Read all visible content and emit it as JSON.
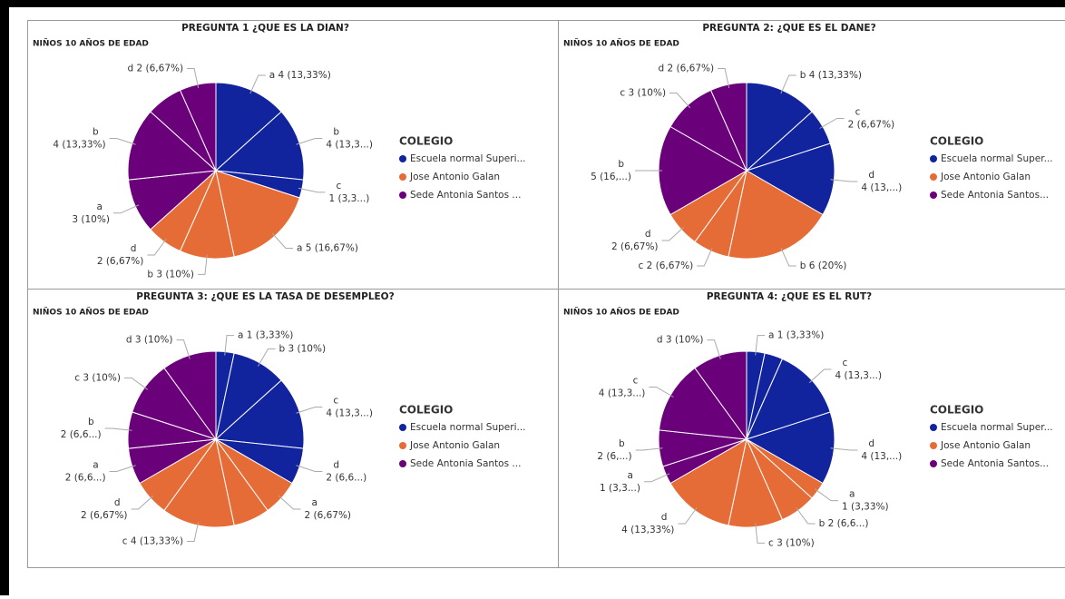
{
  "chart_data": [
    {
      "type": "pie",
      "title": "PREGUNTA 1 ¿QUE ES LA DIAN?",
      "subtitle": "NIÑOS 10 AÑOS DE EDAD",
      "legend_title": "COLEGIO",
      "legend": [
        {
          "name": "Escuela normal Superi...",
          "color": "#12239e"
        },
        {
          "name": "Jose Antonio Galan",
          "color": "#e66c37"
        },
        {
          "name": "Sede  Antonia Santos ...",
          "color": "#6b007b"
        }
      ],
      "slices": [
        {
          "label": [
            "a 4 (13,33%)"
          ],
          "value": 4,
          "color": "#12239e"
        },
        {
          "label": [
            "b",
            "4 (13,3...)"
          ],
          "value": 4,
          "color": "#12239e"
        },
        {
          "label": [
            "c",
            "1 (3,3...)"
          ],
          "value": 1,
          "color": "#12239e"
        },
        {
          "label": [
            "a 5 (16,67%)"
          ],
          "value": 5,
          "color": "#e66c37"
        },
        {
          "label": [
            "b 3 (10%)"
          ],
          "value": 3,
          "color": "#e66c37"
        },
        {
          "label": [
            "d",
            "2 (6,67%)"
          ],
          "value": 2,
          "color": "#e66c37"
        },
        {
          "label": [
            "a",
            "3 (10%)"
          ],
          "value": 3,
          "color": "#6b007b"
        },
        {
          "label": [
            "b",
            "4 (13,33%)"
          ],
          "value": 4,
          "color": "#6b007b"
        },
        {
          "label": null,
          "value": 2,
          "color": "#6b007b"
        },
        {
          "label": [
            "d 2 (6,67%)"
          ],
          "value": 2,
          "color": "#6b007b"
        }
      ]
    },
    {
      "type": "pie",
      "title": "PREGUNTA 2: ¿QUE ES EL DANE?",
      "subtitle": "NIÑOS 10 AÑOS DE EDAD",
      "legend_title": "COLEGIO",
      "legend": [
        {
          "name": "Escuela normal Super...",
          "color": "#12239e"
        },
        {
          "name": "Jose Antonio Galan",
          "color": "#e66c37"
        },
        {
          "name": "Sede  Antonia Santos...",
          "color": "#6b007b"
        }
      ],
      "slices": [
        {
          "label": [
            "b 4 (13,33%)"
          ],
          "value": 4,
          "color": "#12239e"
        },
        {
          "label": [
            "c",
            "2 (6,67%)"
          ],
          "value": 2,
          "color": "#12239e"
        },
        {
          "label": [
            "d",
            "4 (13,...)"
          ],
          "value": 4,
          "color": "#12239e"
        },
        {
          "label": [
            "b 6 (20%)"
          ],
          "value": 6,
          "color": "#e66c37"
        },
        {
          "label": [
            "c 2 (6,67%)"
          ],
          "value": 2,
          "color": "#e66c37"
        },
        {
          "label": [
            "d",
            "2 (6,67%)"
          ],
          "value": 2,
          "color": "#e66c37"
        },
        {
          "label": [
            "b",
            "5 (16,...)"
          ],
          "value": 5,
          "color": "#6b007b"
        },
        {
          "label": [
            "c 3 (10%)"
          ],
          "value": 3,
          "color": "#6b007b"
        },
        {
          "label": [
            "d 2 (6,67%)"
          ],
          "value": 2,
          "color": "#6b007b"
        }
      ]
    },
    {
      "type": "pie",
      "title": "PREGUNTA 3: ¿QUE ES LA TASA DE DESEMPLEO?",
      "subtitle": "NIÑOS 10 AÑOS DE EDAD",
      "legend_title": "COLEGIO",
      "legend": [
        {
          "name": "Escuela normal Superi...",
          "color": "#12239e"
        },
        {
          "name": "Jose Antonio Galan",
          "color": "#e66c37"
        },
        {
          "name": "Sede  Antonia Santos ...",
          "color": "#6b007b"
        }
      ],
      "slices": [
        {
          "label": [
            "a 1 (3,33%)"
          ],
          "value": 1,
          "color": "#12239e"
        },
        {
          "label": [
            "b 3 (10%)"
          ],
          "value": 3,
          "color": "#12239e"
        },
        {
          "label": [
            "c",
            "4 (13,3...)"
          ],
          "value": 4,
          "color": "#12239e"
        },
        {
          "label": [
            "d",
            "2 (6,6...)"
          ],
          "value": 2,
          "color": "#12239e"
        },
        {
          "label": [
            "a",
            "2 (6,67%)"
          ],
          "value": 2,
          "color": "#e66c37"
        },
        {
          "label": null,
          "value": 2,
          "color": "#e66c37"
        },
        {
          "label": [
            "c 4 (13,33%)"
          ],
          "value": 4,
          "color": "#e66c37"
        },
        {
          "label": [
            "d",
            "2 (6,67%)"
          ],
          "value": 2,
          "color": "#e66c37"
        },
        {
          "label": [
            "a",
            "2 (6,6...)"
          ],
          "value": 2,
          "color": "#6b007b"
        },
        {
          "label": [
            "b",
            "2 (6,6...)"
          ],
          "value": 2,
          "color": "#6b007b"
        },
        {
          "label": [
            "c 3 (10%)"
          ],
          "value": 3,
          "color": "#6b007b"
        },
        {
          "label": [
            "d 3 (10%)"
          ],
          "value": 3,
          "color": "#6b007b"
        }
      ]
    },
    {
      "type": "pie",
      "title": "PREGUNTA 4: ¿QUE ES EL RUT?",
      "subtitle": "NIÑOS 10 AÑOS DE EDAD",
      "legend_title": "COLEGIO",
      "legend": [
        {
          "name": "Escuela normal Super...",
          "color": "#12239e"
        },
        {
          "name": "Jose Antonio Galan",
          "color": "#e66c37"
        },
        {
          "name": "Sede  Antonia Santos...",
          "color": "#6b007b"
        }
      ],
      "slices": [
        {
          "label": [
            "a 1 (3,33%)"
          ],
          "value": 1,
          "color": "#12239e"
        },
        {
          "label": null,
          "value": 1,
          "color": "#12239e"
        },
        {
          "label": [
            "c",
            "4 (13,3...)"
          ],
          "value": 4,
          "color": "#12239e"
        },
        {
          "label": [
            "d",
            "4 (13,...)"
          ],
          "value": 4,
          "color": "#12239e"
        },
        {
          "label": [
            "a",
            "1 (3,33%)"
          ],
          "value": 1,
          "color": "#e66c37"
        },
        {
          "label": [
            "b 2 (6,6...)"
          ],
          "value": 2,
          "color": "#e66c37"
        },
        {
          "label": [
            "c 3 (10%)"
          ],
          "value": 3,
          "color": "#e66c37"
        },
        {
          "label": [
            "d",
            "4 (13,33%)"
          ],
          "value": 4,
          "color": "#e66c37"
        },
        {
          "label": [
            "a",
            "1 (3,3...)"
          ],
          "value": 1,
          "color": "#6b007b"
        },
        {
          "label": [
            "b",
            "2 (6,...)"
          ],
          "value": 2,
          "color": "#6b007b"
        },
        {
          "label": [
            "c",
            "4 (13,3...)"
          ],
          "value": 4,
          "color": "#6b007b"
        },
        {
          "label": [
            "d 3 (10%)"
          ],
          "value": 3,
          "color": "#6b007b"
        }
      ]
    }
  ]
}
